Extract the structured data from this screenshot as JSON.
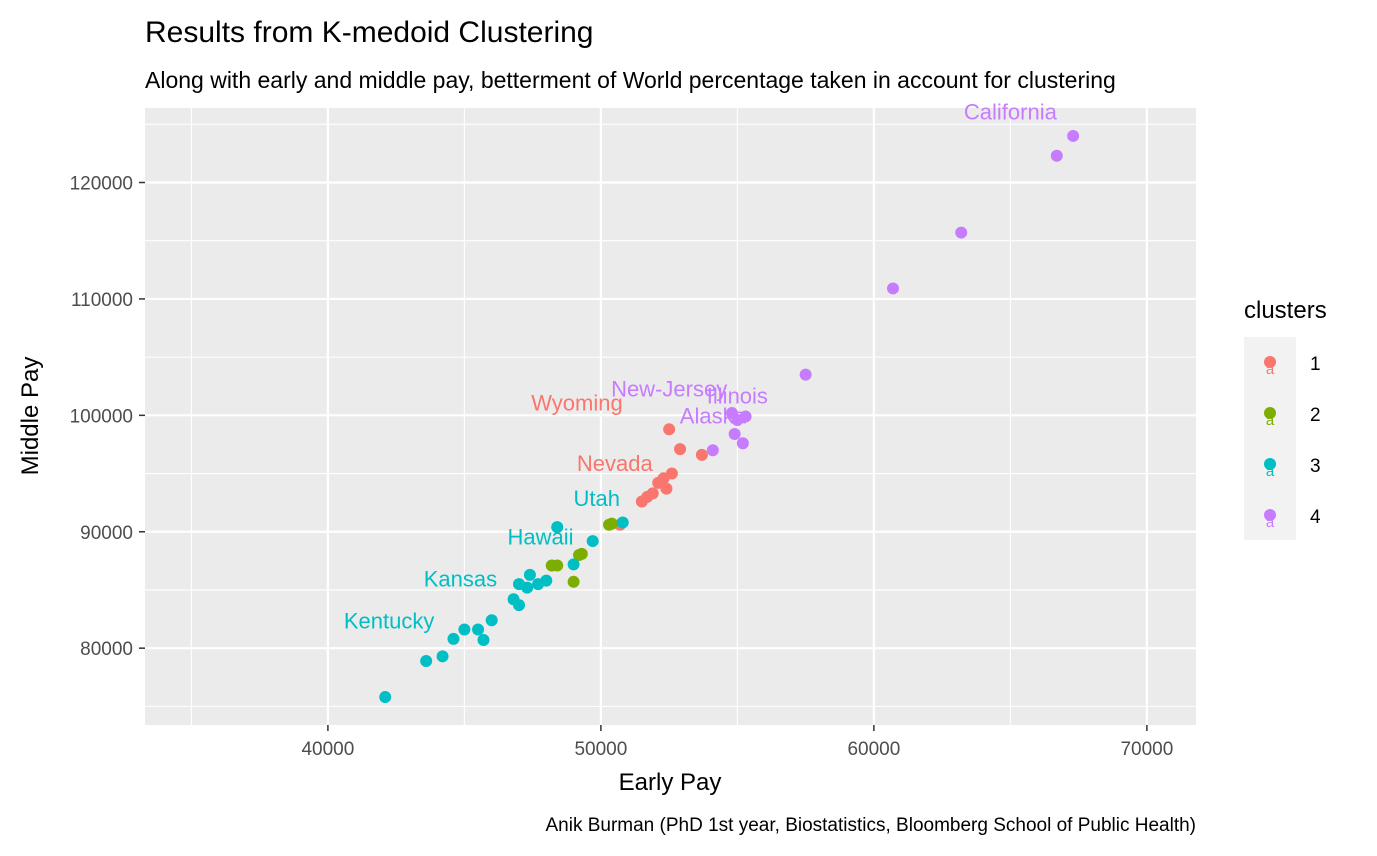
{
  "chart_data": {
    "type": "scatter",
    "title": "Results from K-medoid Clustering",
    "subtitle": "Along with early and middle pay, betterment of World percentage taken in account for clustering",
    "xlabel": "Early Pay",
    "ylabel": "Middle Pay",
    "caption": "Anik Burman (PhD 1st year, Biostatistics, Bloomberg School of Public Health)",
    "xlim": [
      33300,
      71800
    ],
    "ylim": [
      73400,
      126400
    ],
    "x_ticks": [
      40000,
      50000,
      60000,
      70000
    ],
    "x_tick_labels": [
      "40000",
      "50000",
      "60000",
      "70000"
    ],
    "y_ticks": [
      80000,
      90000,
      100000,
      110000,
      120000
    ],
    "y_tick_labels": [
      "80000",
      "90000",
      "100000",
      "110000",
      "120000"
    ],
    "grid": true,
    "legend": {
      "title": "clusters",
      "position": "right",
      "key_glyph": "a",
      "entries": [
        {
          "label": "1",
          "color": "#F8766D"
        },
        {
          "label": "2",
          "color": "#7CAE00"
        },
        {
          "label": "3",
          "color": "#00BFC4"
        },
        {
          "label": "4",
          "color": "#C77CFF"
        }
      ]
    },
    "series": [
      {
        "cluster": "1",
        "color": "#F8766D",
        "points": [
          [
            52500,
            98800
          ],
          [
            52900,
            97100
          ],
          [
            53700,
            96600
          ],
          [
            52600,
            95000
          ],
          [
            52300,
            94600
          ],
          [
            52100,
            94200
          ],
          [
            52400,
            93700
          ],
          [
            51900,
            93300
          ],
          [
            51700,
            93000
          ],
          [
            51500,
            92600
          ],
          [
            50700,
            90600
          ]
        ]
      },
      {
        "cluster": "2",
        "color": "#7CAE00",
        "points": [
          [
            50300,
            90600
          ],
          [
            50400,
            90700
          ],
          [
            49200,
            88000
          ],
          [
            49300,
            88100
          ],
          [
            48200,
            87100
          ],
          [
            48400,
            87100
          ],
          [
            49000,
            85700
          ]
        ]
      },
      {
        "cluster": "3",
        "color": "#00BFC4",
        "points": [
          [
            50800,
            90800
          ],
          [
            48400,
            90400
          ],
          [
            49700,
            89200
          ],
          [
            49000,
            87200
          ],
          [
            47400,
            86300
          ],
          [
            47000,
            85500
          ],
          [
            47300,
            85200
          ],
          [
            47700,
            85500
          ],
          [
            48000,
            85800
          ],
          [
            46800,
            84200
          ],
          [
            47000,
            83700
          ],
          [
            46000,
            82400
          ],
          [
            45000,
            81600
          ],
          [
            45500,
            81600
          ],
          [
            44600,
            80800
          ],
          [
            45700,
            80700
          ],
          [
            44200,
            79300
          ],
          [
            43600,
            78900
          ],
          [
            42100,
            75800
          ]
        ]
      },
      {
        "cluster": "4",
        "color": "#C77CFF",
        "points": [
          [
            67300,
            124000
          ],
          [
            66700,
            122300
          ],
          [
            63200,
            115700
          ],
          [
            60700,
            110900
          ],
          [
            57500,
            103500
          ],
          [
            54800,
            100200
          ],
          [
            55300,
            99900
          ],
          [
            55000,
            99600
          ],
          [
            54900,
            98400
          ],
          [
            55200,
            97600
          ],
          [
            54100,
            97000
          ]
        ]
      }
    ],
    "point_labels": [
      {
        "text": "California",
        "x": 65000,
        "y": 125400,
        "color": "#C77CFF",
        "anchor": "middle"
      },
      {
        "text": "New-Jersey",
        "x": 52500,
        "y": 101600,
        "color": "#C77CFF",
        "anchor": "middle"
      },
      {
        "text": "Illinois",
        "x": 55000,
        "y": 101000,
        "color": "#C77CFF",
        "anchor": "middle"
      },
      {
        "text": "Alaska",
        "x": 54100,
        "y": 99300,
        "color": "#C77CFF",
        "anchor": "middle"
      },
      {
        "text": "Wyoming",
        "x": 50800,
        "y": 100400,
        "color": "#F8766D",
        "anchor": "end"
      },
      {
        "text": "Nevada",
        "x": 51900,
        "y": 95200,
        "color": "#F8766D",
        "anchor": "end"
      },
      {
        "text": "Utah",
        "x": 50700,
        "y": 92200,
        "color": "#00BFC4",
        "anchor": "end"
      },
      {
        "text": "Hawaii",
        "x": 49000,
        "y": 88900,
        "color": "#00BFC4",
        "anchor": "end"
      },
      {
        "text": "Kansas",
        "x": 46200,
        "y": 85300,
        "color": "#00BFC4",
        "anchor": "end"
      },
      {
        "text": "Kentucky",
        "x": 43900,
        "y": 81700,
        "color": "#00BFC4",
        "anchor": "end"
      }
    ]
  }
}
